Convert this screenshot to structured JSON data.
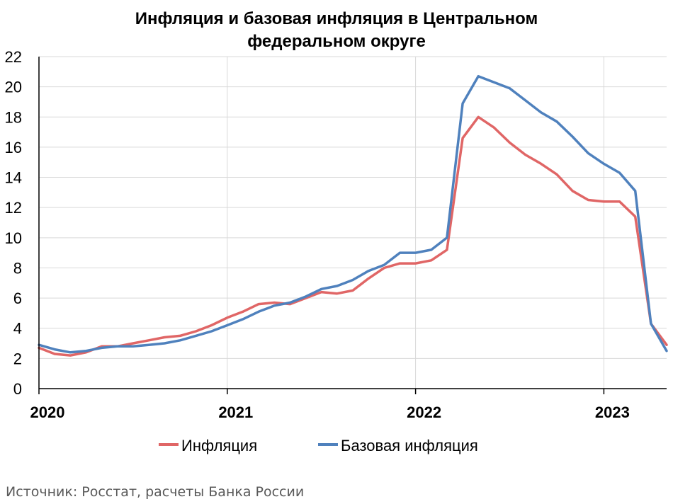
{
  "chart_data": {
    "type": "line",
    "title_lines": [
      "Инфляция и базовая инфляция в Центральном",
      "федеральном округе"
    ],
    "xlabel": "",
    "ylabel": "",
    "ylim": [
      0,
      22
    ],
    "yticks": [
      0,
      2,
      4,
      6,
      8,
      10,
      12,
      14,
      16,
      18,
      20,
      22
    ],
    "xlim": [
      "2020-01",
      "2023-05"
    ],
    "xtick_labels": [
      "2020",
      "2021",
      "2022",
      "2023"
    ],
    "grid": {
      "horizontal": true,
      "vertical": true
    },
    "legend_position": "bottom",
    "x": [
      "2020-01",
      "2020-02",
      "2020-03",
      "2020-04",
      "2020-05",
      "2020-06",
      "2020-07",
      "2020-08",
      "2020-09",
      "2020-10",
      "2020-11",
      "2020-12",
      "2021-01",
      "2021-02",
      "2021-03",
      "2021-04",
      "2021-05",
      "2021-06",
      "2021-07",
      "2021-08",
      "2021-09",
      "2021-10",
      "2021-11",
      "2021-12",
      "2022-01",
      "2022-02",
      "2022-03",
      "2022-04",
      "2022-05",
      "2022-06",
      "2022-07",
      "2022-08",
      "2022-09",
      "2022-10",
      "2022-11",
      "2022-12",
      "2023-01",
      "2023-02",
      "2023-03",
      "2023-04",
      "2023-05"
    ],
    "series": [
      {
        "name": "Инфляция",
        "color": "#E06666",
        "values": [
          2.7,
          2.3,
          2.2,
          2.4,
          2.8,
          2.8,
          3.0,
          3.2,
          3.4,
          3.5,
          3.8,
          4.2,
          4.7,
          5.1,
          5.6,
          5.7,
          5.6,
          6.0,
          6.4,
          6.3,
          6.5,
          7.3,
          8.0,
          8.3,
          8.3,
          8.5,
          9.2,
          16.6,
          18.0,
          17.3,
          16.3,
          15.5,
          14.9,
          14.2,
          13.1,
          12.5,
          12.4,
          12.4,
          11.4,
          4.3,
          2.9
        ]
      },
      {
        "name": "Базовая инфляция",
        "color": "#4F81BD",
        "values": [
          2.9,
          2.6,
          2.4,
          2.5,
          2.7,
          2.8,
          2.8,
          2.9,
          3.0,
          3.2,
          3.5,
          3.8,
          4.2,
          4.6,
          5.1,
          5.5,
          5.7,
          6.1,
          6.6,
          6.8,
          7.2,
          7.8,
          8.2,
          9.0,
          9.0,
          9.2,
          10.0,
          18.9,
          20.7,
          20.3,
          19.9,
          19.1,
          18.3,
          17.7,
          16.7,
          15.6,
          14.9,
          14.3,
          13.1,
          4.3,
          2.5
        ]
      }
    ]
  },
  "source_text": "Источник: Росстат, расчеты Банка России"
}
